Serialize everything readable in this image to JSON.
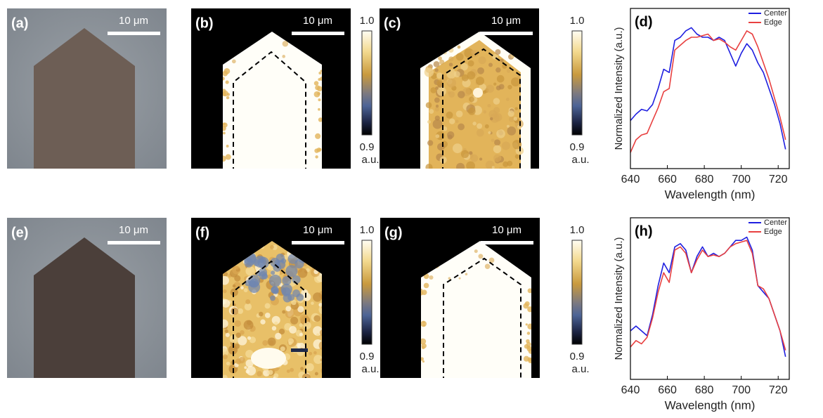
{
  "panels": [
    {
      "label": "(a)",
      "scale_bar": "10 μm"
    },
    {
      "label": "(b)",
      "scale_bar": "10 μm",
      "colorbar": {
        "max": "1.0",
        "min": "0.9",
        "unit": "a.u."
      }
    },
    {
      "label": "(c)",
      "scale_bar": "10 μm",
      "colorbar": {
        "max": "1.0",
        "min": "0.9",
        "unit": "a.u."
      }
    },
    {
      "label": "(e)",
      "scale_bar": "10 μm"
    },
    {
      "label": "(f)",
      "scale_bar": "10 μm",
      "colorbar": {
        "max": "1.0",
        "min": "0.9",
        "unit": "a.u."
      }
    },
    {
      "label": "(g)",
      "scale_bar": "10 μm",
      "colorbar": {
        "max": "1.0",
        "min": "0.9",
        "unit": "a.u."
      }
    }
  ],
  "chart_data": [
    {
      "type": "line",
      "label": "(d)",
      "x_label": "Wavelength (nm)",
      "y_label": "Normalized Intensity (a.u.)",
      "x": [
        640,
        643,
        646,
        649,
        652,
        655,
        658,
        661,
        664,
        667,
        670,
        673,
        676,
        679,
        682,
        685,
        688,
        691,
        694,
        697,
        700,
        703,
        706,
        709,
        712,
        715,
        718,
        721,
        724
      ],
      "series": [
        {
          "name": "Center",
          "color": "#1f1fe0",
          "values": [
            0.3,
            0.34,
            0.37,
            0.36,
            0.4,
            0.5,
            0.62,
            0.6,
            0.8,
            0.82,
            0.86,
            0.88,
            0.84,
            0.82,
            0.82,
            0.8,
            0.82,
            0.8,
            0.72,
            0.64,
            0.72,
            0.78,
            0.74,
            0.66,
            0.6,
            0.5,
            0.4,
            0.28,
            0.12
          ]
        },
        {
          "name": "Edge",
          "color": "#e84040",
          "values": [
            0.1,
            0.18,
            0.21,
            0.22,
            0.3,
            0.38,
            0.48,
            0.5,
            0.74,
            0.77,
            0.8,
            0.82,
            0.82,
            0.83,
            0.84,
            0.8,
            0.81,
            0.79,
            0.76,
            0.74,
            0.8,
            0.86,
            0.84,
            0.76,
            0.66,
            0.56,
            0.44,
            0.32,
            0.18
          ]
        }
      ],
      "xlim": [
        640,
        726
      ],
      "ylim": [
        0,
        1
      ],
      "xticks": [
        640,
        660,
        680,
        700,
        720
      ],
      "legend": "top-right"
    },
    {
      "type": "line",
      "label": "(h)",
      "x_label": "Wavelength (nm)",
      "y_label": "Normalized Intensity (a.u.)",
      "x": [
        640,
        643,
        646,
        649,
        652,
        655,
        658,
        661,
        664,
        667,
        670,
        673,
        676,
        679,
        682,
        685,
        688,
        691,
        694,
        697,
        700,
        703,
        706,
        709,
        712,
        715,
        718,
        721,
        724
      ],
      "series": [
        {
          "name": "Center",
          "color": "#1f1fe0",
          "values": [
            0.3,
            0.33,
            0.3,
            0.27,
            0.4,
            0.58,
            0.72,
            0.66,
            0.82,
            0.84,
            0.8,
            0.66,
            0.76,
            0.82,
            0.76,
            0.78,
            0.76,
            0.78,
            0.82,
            0.86,
            0.86,
            0.88,
            0.8,
            0.58,
            0.54,
            0.5,
            0.4,
            0.3,
            0.14
          ]
        },
        {
          "name": "Edge",
          "color": "#e84040",
          "values": [
            0.2,
            0.24,
            0.22,
            0.26,
            0.38,
            0.54,
            0.66,
            0.6,
            0.8,
            0.82,
            0.78,
            0.66,
            0.74,
            0.8,
            0.76,
            0.77,
            0.76,
            0.78,
            0.82,
            0.84,
            0.85,
            0.86,
            0.78,
            0.58,
            0.56,
            0.5,
            0.4,
            0.3,
            0.18
          ]
        }
      ],
      "xlim": [
        640,
        726
      ],
      "ylim": [
        0,
        1
      ],
      "xticks": [
        640,
        660,
        680,
        700,
        720
      ],
      "legend": "top-right"
    }
  ]
}
